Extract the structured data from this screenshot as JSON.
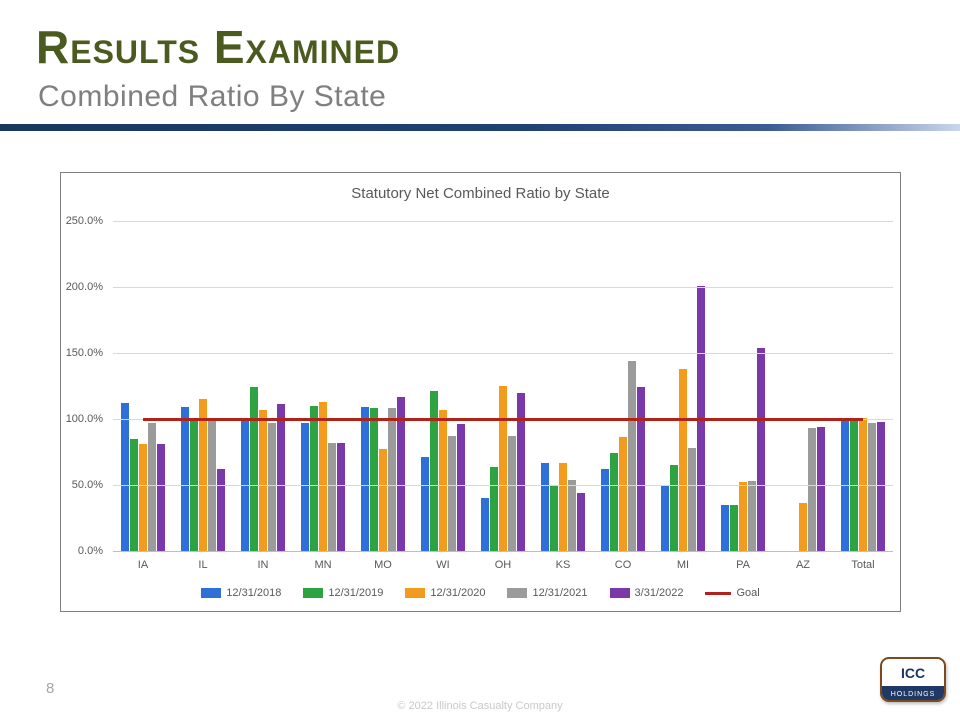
{
  "slide": {
    "title": "Results Examined",
    "subtitle": "Combined Ratio By State",
    "page_number": "8",
    "copyright": "© 2022 Illinois Casualty Company",
    "logo": {
      "line1": "ICC",
      "line2": "HOLDINGS"
    }
  },
  "chart_data": {
    "type": "bar",
    "title": "Statutory Net Combined Ratio by State",
    "categories": [
      "IA",
      "IL",
      "IN",
      "MN",
      "MO",
      "WI",
      "OH",
      "KS",
      "CO",
      "MI",
      "PA",
      "AZ",
      "Total"
    ],
    "series": [
      {
        "name": "12/31/2018",
        "color": "#2e6fd8",
        "values": [
          112,
          109,
          100,
          97,
          109,
          71,
          40,
          67,
          62,
          50,
          35,
          0,
          100
        ]
      },
      {
        "name": "12/31/2019",
        "color": "#2da441",
        "values": [
          85,
          101,
          124,
          110,
          108,
          121,
          64,
          49,
          74,
          65,
          35,
          0,
          100
        ]
      },
      {
        "name": "12/31/2020",
        "color": "#f29b1d",
        "values": [
          81,
          115,
          107,
          113,
          77,
          107,
          125,
          67,
          86,
          138,
          52,
          36,
          101
        ]
      },
      {
        "name": "12/31/2021",
        "color": "#9b9b9b",
        "values": [
          97,
          100,
          97,
          82,
          108,
          87,
          87,
          54,
          144,
          78,
          53,
          93,
          97
        ]
      },
      {
        "name": "3/31/2022",
        "color": "#7a38a8",
        "values": [
          81,
          62,
          111,
          82,
          117,
          96,
          120,
          44,
          124,
          201,
          154,
          94,
          98
        ]
      }
    ],
    "goal": {
      "name": "Goal",
      "value": 100,
      "color": "#b02318"
    },
    "ylim": [
      0,
      250
    ],
    "ytick_step": 50,
    "ytick_labels": [
      "0.0%",
      "50.0%",
      "100.0%",
      "150.0%",
      "200.0%",
      "250.0%"
    ],
    "grid": true,
    "legend_position": "bottom"
  }
}
